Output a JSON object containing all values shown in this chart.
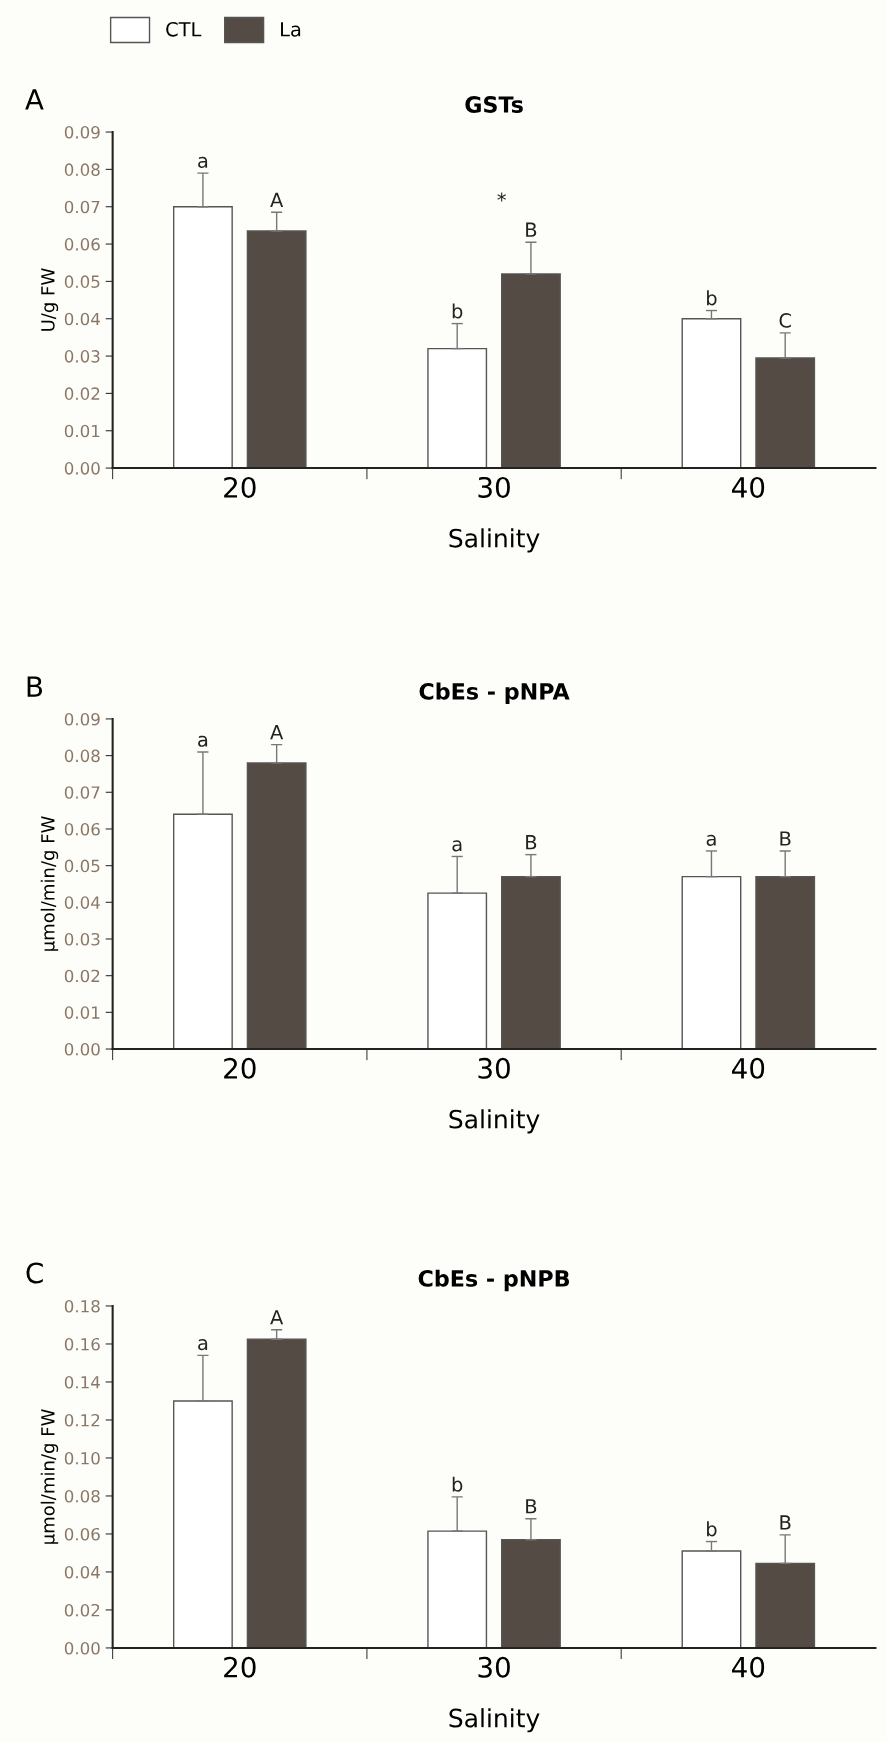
{
  "chart_data": [
    {
      "type": "bar",
      "title": "GSTs",
      "xlabel": "Salinity",
      "ylabel": "U/g FW",
      "categories": [
        "20",
        "30",
        "40"
      ],
      "ylim": [
        0,
        0.09
      ],
      "yticks": [
        {
          "value": 0,
          "label": "0.00"
        },
        0.01,
        0.02,
        0.03,
        0.04,
        0.05,
        0.06,
        0.07,
        0.08,
        0.09
      ],
      "legend": "top left",
      "grid": false,
      "series": [
        {
          "name": "CTL",
          "color": "#ffffff",
          "values": [
            0.07,
            0.032,
            0.04
          ],
          "errors": [
            0.009,
            0.0067,
            0.0022
          ]
        },
        {
          "name": "La",
          "color": "#544b45",
          "values": [
            0.0635,
            0.052,
            0.0295
          ],
          "errors": [
            0.005,
            0.0085,
            0.0067
          ]
        }
      ],
      "annotations": [
        "A",
        "a",
        "A",
        "b",
        "B",
        "b",
        "C",
        "*"
      ]
    },
    {
      "type": "bar",
      "title": "CbEs - pNPA",
      "xlabel": "Salinity",
      "ylabel": "µmol/min/g FW",
      "categories": [
        "20",
        "30",
        "40"
      ],
      "ylim": [
        0,
        0.09
      ],
      "yticks": [
        {
          "value": 0,
          "label": "0.00"
        },
        0.01,
        0.02,
        0.03,
        0.04,
        0.05,
        0.06,
        0.07,
        0.08,
        0.09
      ],
      "grid": false,
      "series": [
        {
          "color": "#ffffff",
          "values": [
            0.064,
            0.0425,
            0.047
          ],
          "errors": [
            0.017,
            0.01,
            0.007
          ]
        },
        {
          "color": "#544b45",
          "values": [
            0.078,
            0.047,
            0.047
          ],
          "errors": [
            0.005,
            0.006,
            0.007
          ]
        }
      ],
      "annotations": [
        "B",
        "a",
        "A",
        "a",
        "B",
        "a",
        "B"
      ]
    },
    {
      "type": "bar",
      "title": "CbEs - pNPB",
      "xlabel": "Salinity",
      "ylabel": "µmol/min/g FW",
      "categories": [
        "20",
        "30",
        "40"
      ],
      "ylim": [
        0,
        0.18
      ],
      "yticks": [
        {
          "value": 0,
          "label": "0.00"
        },
        {
          "value": 0.02,
          "label": "0.02"
        },
        {
          "value": 0.04,
          "label": "0.04"
        },
        {
          "value": 0.06,
          "label": "0.06"
        },
        {
          "value": 0.08,
          "label": "0.08"
        },
        {
          "value": 0.1,
          "label": "0.10"
        },
        {
          "value": 0.12,
          "label": "0.12"
        },
        {
          "value": 0.14,
          "label": "0.14"
        },
        {
          "value": 0.16,
          "label": "0.16"
        },
        {
          "value": 0.18,
          "label": "0.18"
        }
      ],
      "grid": false,
      "series": [
        {
          "color": "#ffffff",
          "values": [
            0.13,
            0.0615,
            0.051
          ],
          "errors": [
            0.024,
            0.018,
            0.005
          ]
        },
        {
          "color": "#544b45",
          "values": [
            0.1625,
            0.057,
            0.0445
          ],
          "errors": [
            0.005,
            0.011,
            0.015
          ]
        }
      ],
      "annotations": [
        "C",
        "a",
        "A",
        "b",
        "B",
        "b",
        "B"
      ]
    }
  ]
}
